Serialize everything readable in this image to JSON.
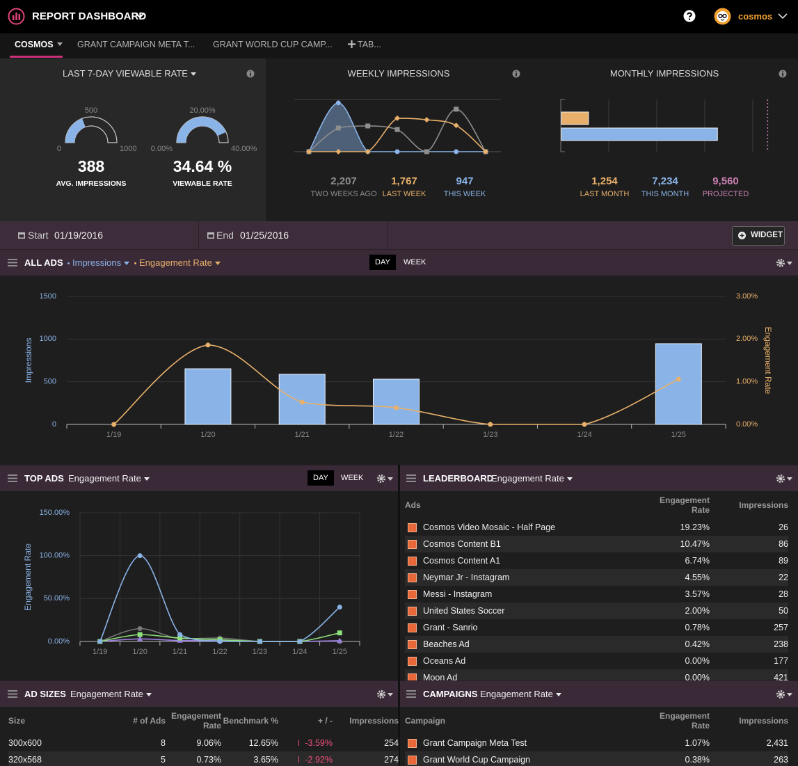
{
  "header": {
    "title": "REPORT DASHBOARD",
    "user": "cosmos"
  },
  "tabs": [
    "COSMOS",
    "GRANT CAMPAIGN META T...",
    "GRANT WORLD CUP CAMP...",
    "TAB..."
  ],
  "viewable": {
    "title": "LAST 7-DAY VIEWABLE RATE",
    "gauges": [
      {
        "type": "gauge",
        "ticks": [
          0,
          500,
          1000
        ],
        "value": 388,
        "label": "AVG. IMPRESSIONS",
        "color": "#8ab4e8"
      },
      {
        "type": "gauge",
        "ticks": [
          {
            "value": 0,
            "label": "0.00%"
          },
          {
            "value": 20,
            "label": "20.00%"
          },
          {
            "value": 40,
            "label": "40.00%"
          }
        ],
        "value": 34.64,
        "value_label": "34.64 %",
        "label": "VIEWABLE RATE",
        "color": "#8ab4e8"
      }
    ]
  },
  "weekly": {
    "type": "line",
    "title": "WEEKLY IMPRESSIONS",
    "categories": [
      null,
      null,
      null,
      null,
      null,
      null,
      null
    ],
    "ylim": [
      0,
      1000
    ],
    "series": [
      {
        "name": "TWO WEEKS AGO",
        "color": "#8e8e8e",
        "marker": "square",
        "values": [
          0,
          460,
          500,
          430,
          0,
          825,
          0
        ],
        "total": "2,207"
      },
      {
        "name": "LAST WEEK",
        "color": "#e8b06a",
        "marker": "diamond",
        "values": [
          0,
          0,
          0,
          650,
          620,
          510,
          0
        ],
        "total": "1,767"
      },
      {
        "name": "THIS WEEK",
        "color": "#8ab4e8",
        "marker": "circle",
        "area": true,
        "values": [
          0,
          947,
          0,
          0,
          0,
          0,
          0
        ],
        "total": "947"
      }
    ]
  },
  "monthly": {
    "type": "bar",
    "orientation": "horizontal",
    "title": "MONTHLY IMPRESSIONS",
    "xlim": [
      0,
      10000
    ],
    "categories": [
      "LAST MONTH",
      "THIS MONTH"
    ],
    "values": [
      1254,
      7234
    ],
    "value_labels": [
      "1,254",
      "7,234"
    ],
    "colors": [
      "#e8b06a",
      "#8ab4e8"
    ],
    "projected": {
      "name": "PROJECTED",
      "value": 9560,
      "value_label": "9,560",
      "color": "#c77fb0"
    }
  },
  "date_range": {
    "start_label": "Start",
    "start": "01/19/2016",
    "end_label": "End",
    "end": "01/25/2016",
    "button": "WIDGET"
  },
  "all_ads": {
    "title": "ALL ADS",
    "toggles": [
      "DAY",
      "WEEK"
    ],
    "chart": {
      "type": "combo",
      "categories": [
        "1/19",
        "1/20",
        "1/21",
        "1/22",
        "1/23",
        "1/24",
        "1/25"
      ],
      "ylim": [
        0,
        1500
      ],
      "yticks": [
        0,
        500,
        1000,
        1500
      ],
      "y2lim": [
        0,
        3
      ],
      "y2ticks": [
        {
          "value": 0,
          "label": "0.00%"
        },
        {
          "value": 1,
          "label": "1.00%"
        },
        {
          "value": 2,
          "label": "2.00%"
        },
        {
          "value": 3,
          "label": "3.00%"
        }
      ],
      "ylabel": "Impressions",
      "y2label": "Engagement Rate",
      "grid": true,
      "series": [
        {
          "name": "Impressions",
          "type": "bar",
          "color": "#8ab4e8",
          "values": [
            0,
            652,
            587,
            530,
            0,
            0,
            946
          ]
        },
        {
          "name": "Engagement Rate",
          "type": "line",
          "axis": "y2",
          "color": "#e8b06a",
          "marker": "circle",
          "values": [
            0,
            1.86,
            0.52,
            0.39,
            0,
            0,
            1.06
          ]
        }
      ]
    }
  },
  "top_ads": {
    "title": "TOP ADS",
    "metric": "Engagement Rate",
    "toggles": [
      "DAY",
      "WEEK"
    ],
    "chart": {
      "type": "line",
      "categories": [
        "1/19",
        "1/20",
        "1/21",
        "1/22",
        "1/23",
        "1/24",
        "1/25"
      ],
      "ylim": [
        0,
        150
      ],
      "yticks": [
        {
          "value": 0,
          "label": "0.00%"
        },
        {
          "value": 50,
          "label": "50.00%"
        },
        {
          "value": 100,
          "label": "100.00%"
        },
        {
          "value": 150,
          "label": "150.00%"
        }
      ],
      "ylabel": "Engagement Rate",
      "grid": true,
      "series": [
        {
          "color": "#777777",
          "marker": "circle",
          "values": [
            0,
            15,
            3,
            4,
            0,
            0,
            0
          ]
        },
        {
          "color": "#9b7fe0",
          "marker": "triangle",
          "values": [
            0,
            3,
            1,
            1,
            0,
            0,
            1
          ]
        },
        {
          "color": "#8de07a",
          "marker": "square",
          "values": [
            0,
            8,
            4,
            2,
            0,
            0,
            10
          ]
        },
        {
          "color": "#8ab4e8",
          "marker": "circle",
          "values": [
            0,
            100,
            8,
            0,
            0,
            0,
            40
          ]
        }
      ]
    }
  },
  "leaderboard": {
    "title": "LEADERBOARD",
    "metric": "Engagement Rate",
    "table": {
      "columns": [
        "Ads",
        "Engagement Rate",
        "Impressions"
      ],
      "rows": [
        [
          "Cosmos Video Mosaic - Half Page",
          "19.23%",
          "26"
        ],
        [
          "Cosmos Content B1",
          "10.47%",
          "86"
        ],
        [
          "Cosmos Content A1",
          "6.74%",
          "89"
        ],
        [
          "Neymar Jr - Instagram",
          "4.55%",
          "22"
        ],
        [
          "Messi - Instagram",
          "3.57%",
          "28"
        ],
        [
          "United States Soccer",
          "2.00%",
          "50"
        ],
        [
          "Grant - Sanrio",
          "0.78%",
          "257"
        ],
        [
          "Beaches Ad",
          "0.42%",
          "238"
        ],
        [
          "Oceans Ad",
          "0.00%",
          "177"
        ],
        [
          "Moon Ad",
          "0.00%",
          "421"
        ]
      ]
    }
  },
  "ad_sizes": {
    "title": "AD SIZES",
    "metric": "Engagement Rate",
    "table": {
      "columns": [
        "Size",
        "# of Ads",
        "Engagement Rate",
        "Benchmark %",
        "+ / -",
        "Impressions"
      ],
      "rows": [
        [
          "300x600",
          "8",
          "9.06%",
          "12.65%",
          "-3.59%",
          "254"
        ],
        [
          "320x568",
          "5",
          "0.73%",
          "3.65%",
          "-2.92%",
          "274"
        ]
      ]
    }
  },
  "campaigns": {
    "title": "CAMPAIGNS",
    "metric": "Engagement Rate",
    "table": {
      "columns": [
        "Campaign",
        "Engagement Rate",
        "Impressions"
      ],
      "rows": [
        [
          "Grant Campaign Meta Test",
          "1.07%",
          "2,431"
        ],
        [
          "Grant World Cup Campaign",
          "0.38%",
          "263"
        ]
      ]
    }
  }
}
